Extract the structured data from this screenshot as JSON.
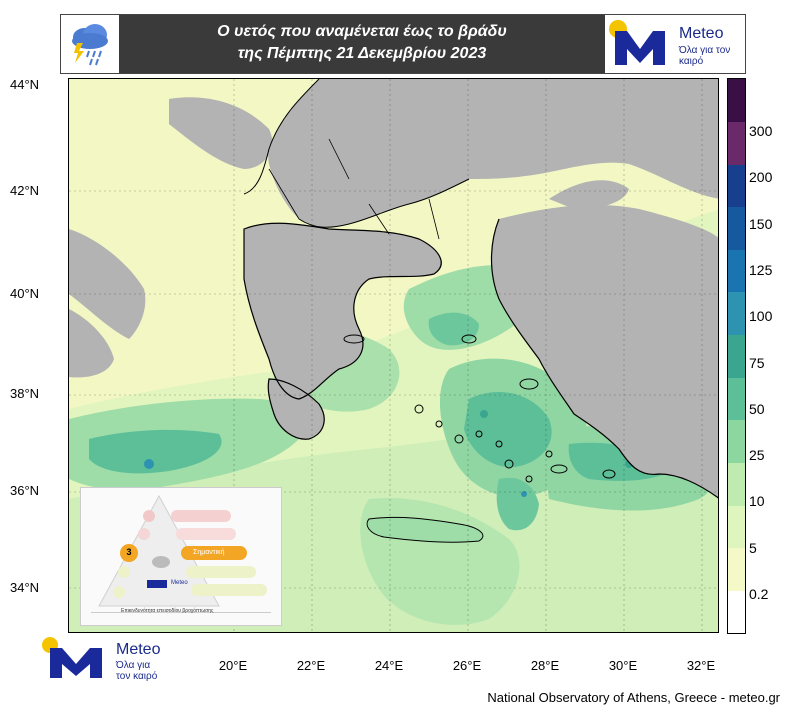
{
  "header": {
    "title_line1": "Ο υετός που αναμένεται έως το βράδυ",
    "title_line2": "της Πέμπτης 21 Δεκεμβρίου 2023",
    "logo_name": "Meteo",
    "logo_tagline": "Όλα για τον καιρό",
    "left_icon": "rain-cloud-lightning-icon"
  },
  "map": {
    "lat_ticks": [
      "44°N",
      "42°N",
      "40°N",
      "38°N",
      "36°N",
      "34°N"
    ],
    "lon_ticks": [
      "20°E",
      "22°E",
      "24°E",
      "26°E",
      "28°E",
      "30°E",
      "32°E"
    ]
  },
  "colorbar": {
    "labels": [
      "300",
      "200",
      "150",
      "125",
      "100",
      "75",
      "50",
      "25",
      "10",
      "5",
      "0.2"
    ],
    "colors": [
      "#ffffff",
      "#f5f9c8",
      "#dff5be",
      "#bfeab0",
      "#8cd6a0",
      "#5cbf98",
      "#3aa690",
      "#2e93b0",
      "#1a74b0",
      "#155a9e",
      "#183f8e",
      "#6a2a6a",
      "#3a0f45"
    ]
  },
  "inset": {
    "level_label": "3",
    "level_text": "Σημαντική",
    "caption": "Επικινδυνότητα επεισοδίου βροχόπτωσης",
    "logo_name": "Meteo"
  },
  "bottom_logo": {
    "name": "Meteo",
    "tagline_line1": "Όλα για",
    "tagline_line2": "τον καιρό"
  },
  "footer": {
    "credit": "National Observatory of Athens, Greece - meteo.gr"
  }
}
